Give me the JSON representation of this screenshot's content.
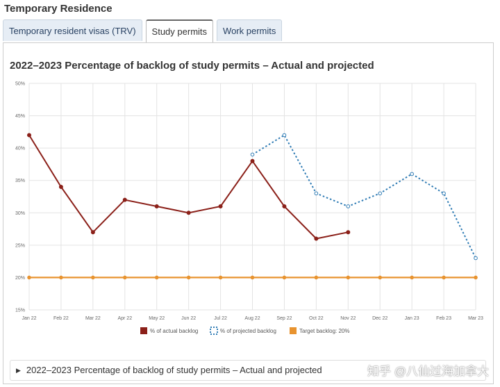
{
  "page": {
    "title": "Temporary Residence"
  },
  "tabs": [
    {
      "label": "Temporary resident visas (TRV)",
      "active": false
    },
    {
      "label": "Study permits",
      "active": true
    },
    {
      "label": "Work permits",
      "active": false
    }
  ],
  "details_summary": "2022–2023 Percentage of backlog of study permits – Actual and projected",
  "watermark": "知乎 @八仙过海加拿大",
  "colors": {
    "actual": "#8b2019",
    "projected": "#2e7bb4",
    "target": "#e8932f",
    "grid": "#e3e3e3"
  },
  "chart_data": {
    "type": "line",
    "title": "2022–2023 Percentage of backlog of study permits – Actual and projected",
    "categories": [
      "Jan 22",
      "Feb 22",
      "Mar 22",
      "Apr 22",
      "May 22",
      "Jun 22",
      "Jul 22",
      "Aug 22",
      "Sep 22",
      "Oct 22",
      "Nov 22",
      "Dec 22",
      "Jan 23",
      "Feb 23",
      "Mar 23"
    ],
    "y_ticks": [
      "15%",
      "20%",
      "25%",
      "30%",
      "35%",
      "40%",
      "45%",
      "50%"
    ],
    "ylim": [
      15,
      50
    ],
    "grid": true,
    "legend_position": "bottom",
    "series": [
      {
        "name": "% of actual backlog",
        "style": "solid",
        "values": [
          42,
          34,
          27,
          32,
          31,
          30,
          31,
          38,
          31,
          26,
          27,
          null,
          null,
          null,
          null
        ]
      },
      {
        "name": "% of projected backlog",
        "style": "dotted",
        "values": [
          null,
          null,
          null,
          null,
          null,
          null,
          null,
          39,
          42,
          33,
          31,
          33,
          36,
          33,
          23
        ]
      },
      {
        "name": "Target backlog: 20%",
        "style": "solid",
        "values": [
          20,
          20,
          20,
          20,
          20,
          20,
          20,
          20,
          20,
          20,
          20,
          20,
          20,
          20,
          20
        ]
      }
    ]
  }
}
